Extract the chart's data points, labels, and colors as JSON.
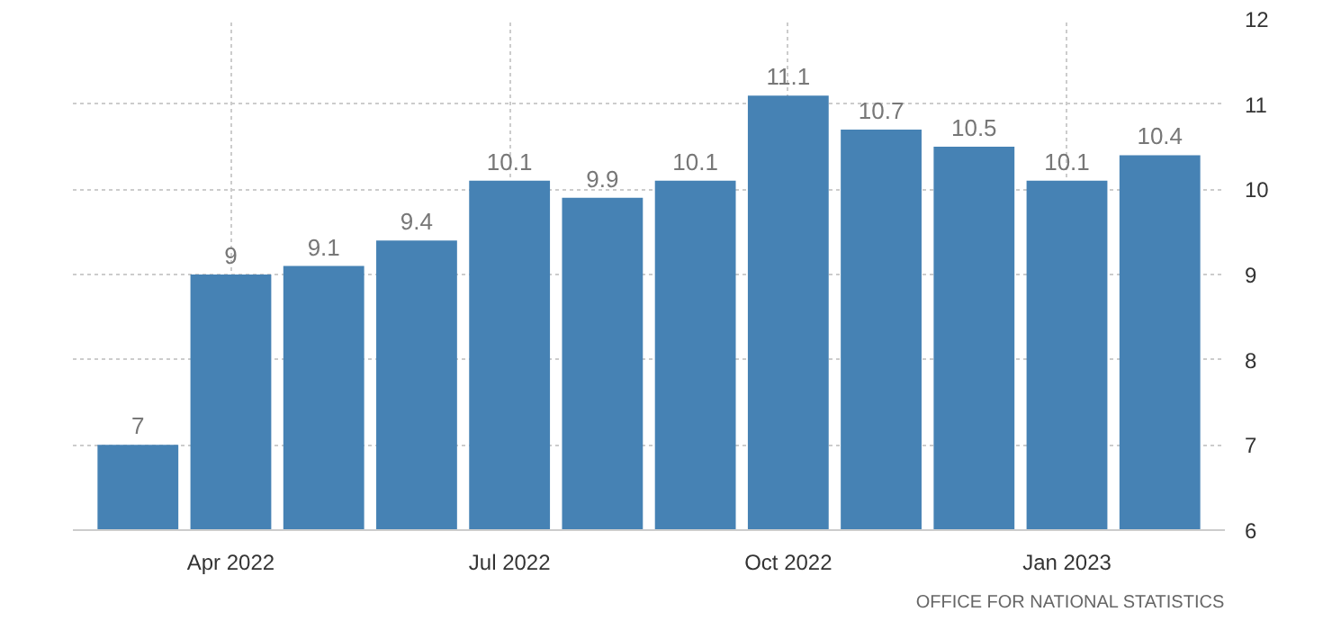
{
  "chart_data": {
    "type": "bar",
    "categories": [
      null,
      "Apr 2022",
      null,
      null,
      "Jul 2022",
      null,
      null,
      "Oct 2022",
      null,
      null,
      "Jan 2023",
      null
    ],
    "values": [
      7,
      9,
      9.1,
      9.4,
      10.1,
      9.9,
      10.1,
      11.1,
      10.7,
      10.5,
      10.1,
      10.4
    ],
    "color": "#4682b4",
    "ylim": [
      6,
      12
    ],
    "yticks": [
      6,
      7,
      8,
      9,
      10,
      11,
      12
    ],
    "grid": true,
    "data_labels": true,
    "annotations": [
      "OFFICE FOR NATIONAL STATISTICS"
    ]
  }
}
